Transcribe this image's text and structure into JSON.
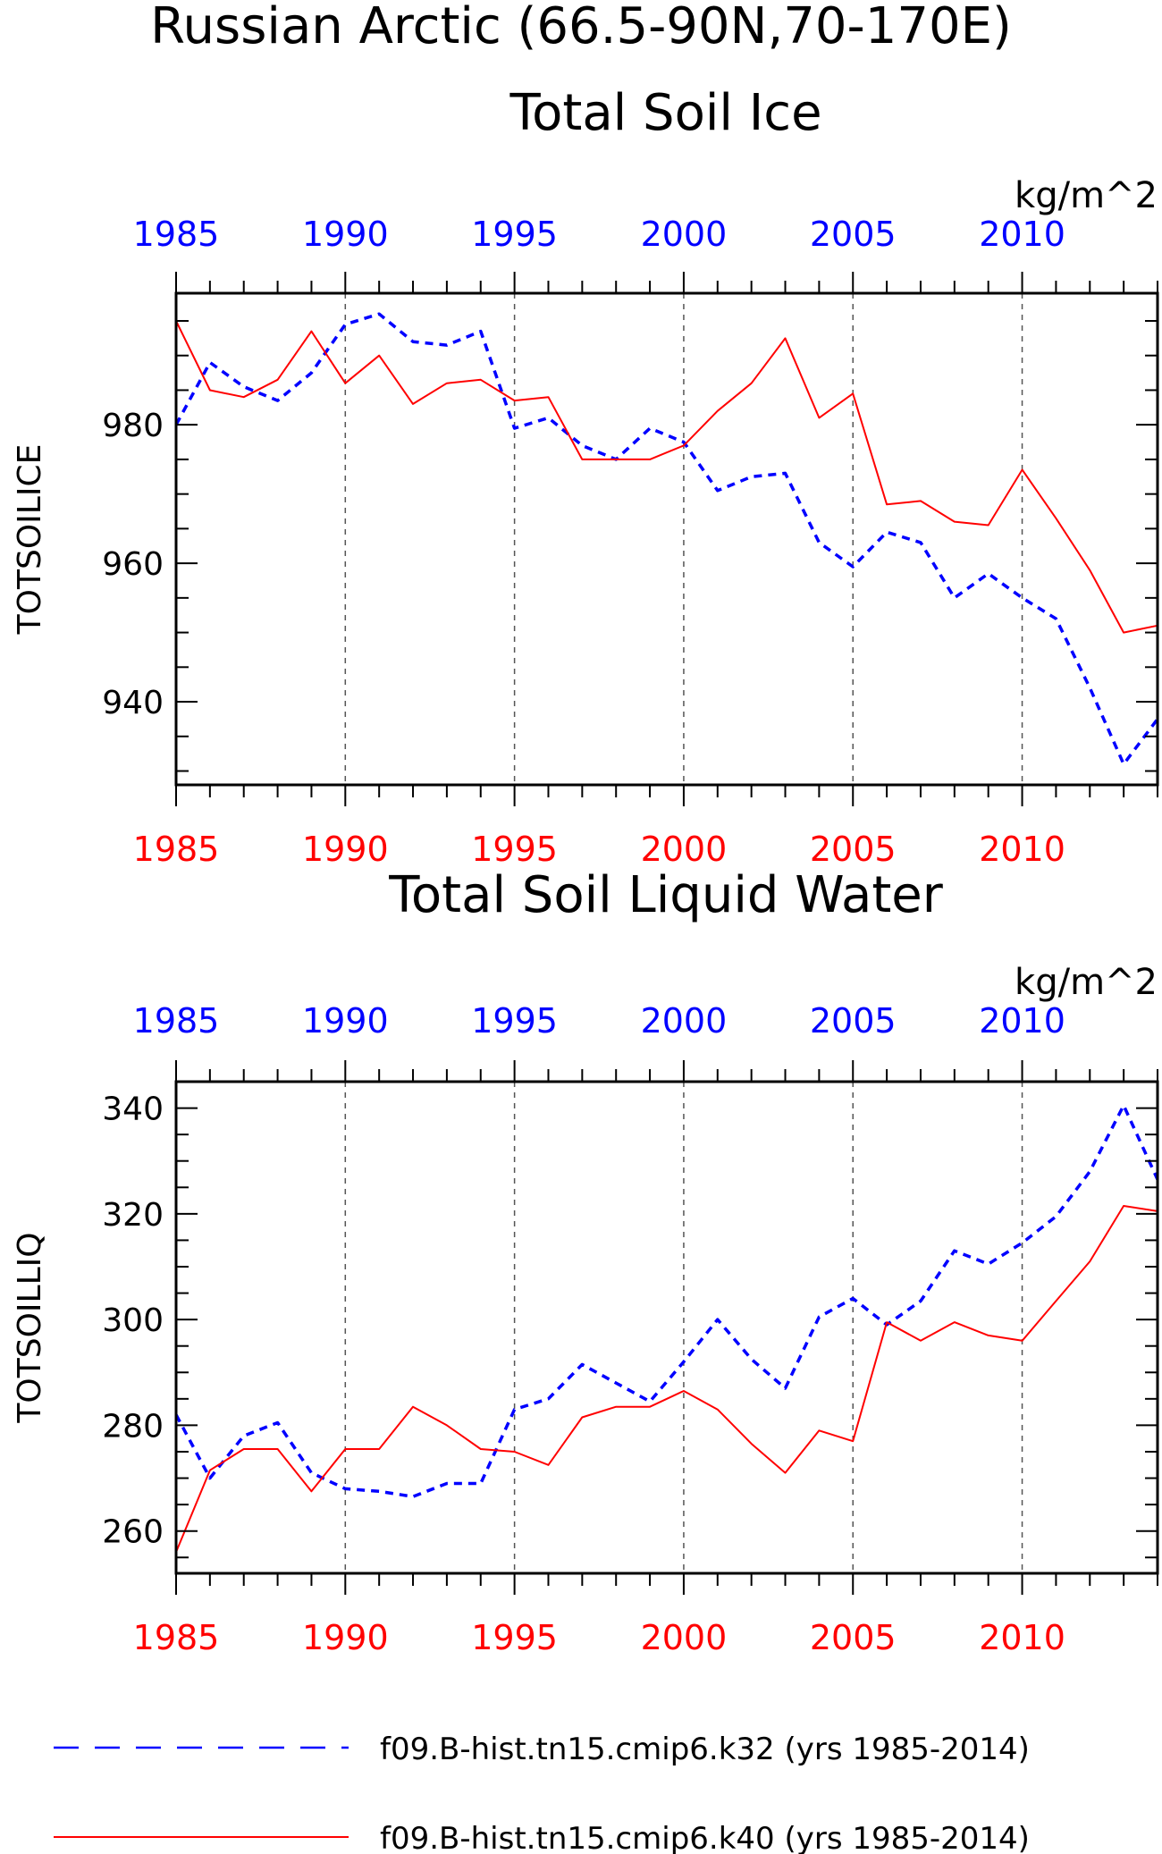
{
  "title_line1": "Russian Arctic (66.5-90N,70-170E)",
  "colors": {
    "k32": "#0000ff",
    "k40": "#ff0000",
    "axis": "#000000",
    "grid": "#555555"
  },
  "legend": [
    {
      "label": "f09.B-hist.tn15.cmip6.k32 (yrs 1985-2014)",
      "color": "#0000ff",
      "style": "dashed"
    },
    {
      "label": "f09.B-hist.tn15.cmip6.k40 (yrs 1985-2014)",
      "color": "#ff0000",
      "style": "solid"
    }
  ],
  "chart_data": [
    {
      "type": "line",
      "title": "Total Soil Ice",
      "ylabel": "TOTSOILICE",
      "units": "kg/m^2",
      "xlim": [
        1985,
        2014
      ],
      "ylim": [
        928,
        999
      ],
      "xticks": [
        "1985",
        "1990",
        "1995",
        "2000",
        "2005",
        "2010"
      ],
      "yticks": [
        "940",
        "960",
        "980"
      ],
      "grid": "vertical dashed at major x ticks",
      "x": [
        1985,
        1986,
        1987,
        1988,
        1989,
        1990,
        1991,
        1992,
        1993,
        1994,
        1995,
        1996,
        1997,
        1998,
        1999,
        2000,
        2001,
        2002,
        2003,
        2004,
        2005,
        2006,
        2007,
        2008,
        2009,
        2010,
        2011,
        2012,
        2013,
        2014
      ],
      "series": [
        {
          "name": "f09.B-hist.tn15.cmip6.k32 (yrs 1985-2014)",
          "color": "#0000ff",
          "style": "dashed",
          "values": [
            980.0,
            989.0,
            985.5,
            983.5,
            987.5,
            994.5,
            996.0,
            992.0,
            991.5,
            993.5,
            979.5,
            981.0,
            977.0,
            975.0,
            979.5,
            977.5,
            970.5,
            972.5,
            973.0,
            963.0,
            959.5,
            964.5,
            963.0,
            955.0,
            958.5,
            955.0,
            952.0,
            942.0,
            931.0,
            937.5
          ]
        },
        {
          "name": "f09.B-hist.tn15.cmip6.k40 (yrs 1985-2014)",
          "color": "#ff0000",
          "style": "solid",
          "values": [
            995.0,
            985.0,
            984.0,
            986.5,
            993.5,
            986.0,
            990.0,
            983.0,
            986.0,
            986.5,
            983.5,
            984.0,
            975.0,
            975.0,
            975.0,
            977.0,
            982.0,
            986.0,
            992.5,
            981.0,
            984.5,
            968.5,
            969.0,
            966.0,
            965.5,
            973.5,
            966.5,
            959.0,
            950.0,
            951.0
          ]
        }
      ]
    },
    {
      "type": "line",
      "title": "Total Soil Liquid Water",
      "ylabel": "TOTSOILLIQ",
      "units": "kg/m^2",
      "xlim": [
        1985,
        2014
      ],
      "ylim": [
        252,
        345
      ],
      "xticks": [
        "1985",
        "1990",
        "1995",
        "2000",
        "2005",
        "2010"
      ],
      "yticks": [
        "260",
        "280",
        "300",
        "320",
        "340"
      ],
      "grid": "vertical dashed at major x ticks",
      "x": [
        1985,
        1986,
        1987,
        1988,
        1989,
        1990,
        1991,
        1992,
        1993,
        1994,
        1995,
        1996,
        1997,
        1998,
        1999,
        2000,
        2001,
        2002,
        2003,
        2004,
        2005,
        2006,
        2007,
        2008,
        2009,
        2010,
        2011,
        2012,
        2013,
        2014
      ],
      "series": [
        {
          "name": "f09.B-hist.tn15.cmip6.k32 (yrs 1985-2014)",
          "color": "#0000ff",
          "style": "dashed",
          "values": [
            282.0,
            270.0,
            278.0,
            280.5,
            271.0,
            268.0,
            267.5,
            266.5,
            269.0,
            269.0,
            283.0,
            285.0,
            291.5,
            288.0,
            284.5,
            292.0,
            300.0,
            292.5,
            287.0,
            300.5,
            304.0,
            299.0,
            303.5,
            313.0,
            310.5,
            314.5,
            319.5,
            328.0,
            340.5,
            326.5
          ]
        },
        {
          "name": "f09.B-hist.tn15.cmip6.k40 (yrs 1985-2014)",
          "color": "#ff0000",
          "style": "solid",
          "values": [
            256.0,
            271.5,
            275.5,
            275.5,
            267.5,
            275.5,
            275.5,
            283.5,
            280.0,
            275.5,
            275.0,
            272.5,
            281.5,
            283.5,
            283.5,
            286.5,
            283.0,
            276.5,
            271.0,
            279.0,
            277.0,
            299.5,
            296.0,
            299.5,
            297.0,
            296.0,
            303.5,
            311.0,
            321.5,
            320.5
          ]
        }
      ]
    }
  ]
}
